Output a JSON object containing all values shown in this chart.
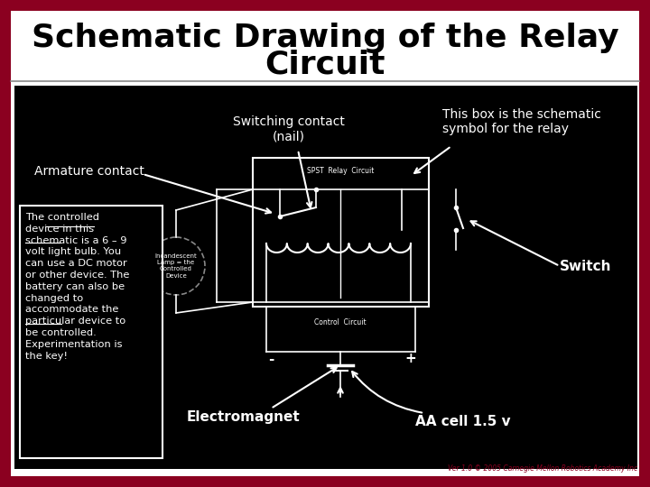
{
  "title_line1": "Schematic Drawing of the Relay",
  "title_line2": "Circuit",
  "title_fontsize": 26,
  "title_color": "#000000",
  "border_color": "#8B0020",
  "bg_color": "#FFFFFF",
  "inner_bg": "#000000",
  "label_switching_contact": "Switching contact\n(nail)",
  "label_armature": "Armature contact",
  "label_box_relay": "This box is the schematic\nsymbol for the relay",
  "label_electromagnet": "Electromagnet",
  "label_aa_cell": "AA cell 1.5 v",
  "label_switch": "Switch",
  "watermark": "Ver 1.0 © 2005 Carnegie Mellon Robotics Academy Inc",
  "white": "#FFFFFF",
  "black": "#000000",
  "label_fontsize": 10,
  "ctrl_text_line1": "The ",
  "ctrl_text_underline1": "controlled",
  "ctrl_text_line1b": "",
  "ctrl_text_underline2": "device",
  "ctrl_text_body": " in this\nschematic is a 6 – 9\nvolt light bulb. You\ncan use a DC motor\nor other device. The\n",
  "ctrl_text_underline3": "battery",
  "ctrl_text_end": " can also be\nchanged to\naccommodate the\nparticular device to\nbe controlled.\nExperimentation is\nthe key!"
}
